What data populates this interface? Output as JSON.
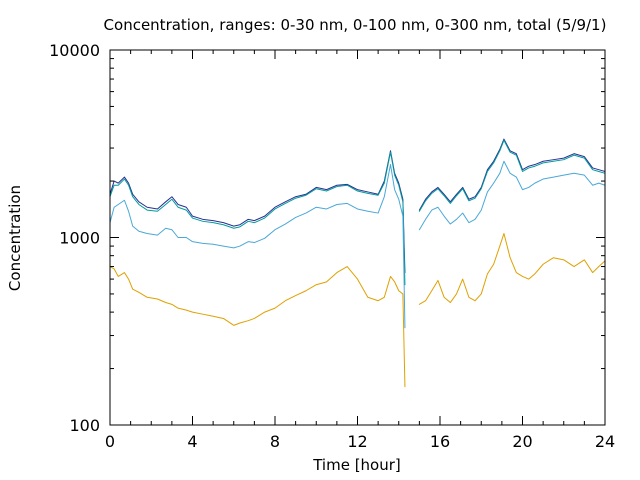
{
  "chart_data": {
    "type": "line",
    "title": "Concentration, ranges: 0-30 nm, 0-100 nm, 0-300 nm, total (5/9/1)",
    "xlabel": "Time [hour]",
    "ylabel": "Concentration",
    "xlim": [
      0,
      24
    ],
    "ylim": [
      100,
      10000
    ],
    "yscale": "log",
    "grid": false,
    "legend": "none",
    "x_ticks": [
      "0",
      "4",
      "8",
      "12",
      "16",
      "20",
      "24"
    ],
    "y_ticks": [
      "100",
      "1000",
      "10000"
    ],
    "colors": {
      "total": "#2b2f93",
      "range_0_300": "#009c9c",
      "range_0_100": "#4aa8d8",
      "range_0_30": "#e0a000",
      "frame": "#000000"
    },
    "series": [
      {
        "color": "#2b2f93",
        "segments": [
          [
            [
              0,
              1700
            ],
            [
              0.2,
              2000
            ],
            [
              0.4,
              1950
            ],
            [
              0.7,
              2100
            ],
            [
              0.9,
              1950
            ],
            [
              1.1,
              1700
            ],
            [
              1.4,
              1550
            ],
            [
              1.8,
              1450
            ],
            [
              2.3,
              1420
            ],
            [
              2.7,
              1550
            ],
            [
              3.0,
              1650
            ],
            [
              3.3,
              1500
            ],
            [
              3.7,
              1450
            ],
            [
              4.0,
              1300
            ],
            [
              4.5,
              1250
            ],
            [
              5.0,
              1230
            ],
            [
              5.5,
              1200
            ],
            [
              6.0,
              1150
            ],
            [
              6.3,
              1170
            ],
            [
              6.7,
              1250
            ],
            [
              7.0,
              1230
            ],
            [
              7.5,
              1300
            ],
            [
              8.0,
              1450
            ],
            [
              8.5,
              1550
            ],
            [
              9.0,
              1650
            ],
            [
              9.5,
              1700
            ],
            [
              10.0,
              1850
            ],
            [
              10.5,
              1800
            ],
            [
              11.0,
              1900
            ],
            [
              11.5,
              1920
            ],
            [
              12.0,
              1800
            ],
            [
              12.5,
              1750
            ],
            [
              13.0,
              1700
            ],
            [
              13.3,
              2000
            ],
            [
              13.6,
              2900
            ],
            [
              13.8,
              2200
            ],
            [
              14.0,
              1950
            ],
            [
              14.2,
              1600
            ],
            [
              14.3,
              650
            ]
          ],
          [
            [
              15.0,
              1400
            ],
            [
              15.3,
              1600
            ],
            [
              15.6,
              1750
            ],
            [
              15.9,
              1850
            ],
            [
              16.2,
              1700
            ],
            [
              16.5,
              1550
            ],
            [
              16.8,
              1700
            ],
            [
              17.1,
              1850
            ],
            [
              17.4,
              1600
            ],
            [
              17.7,
              1650
            ],
            [
              18.0,
              1850
            ],
            [
              18.3,
              2300
            ],
            [
              18.6,
              2550
            ],
            [
              18.9,
              2950
            ],
            [
              19.1,
              3350
            ],
            [
              19.4,
              2900
            ],
            [
              19.7,
              2800
            ],
            [
              20.0,
              2300
            ],
            [
              20.3,
              2400
            ],
            [
              20.6,
              2450
            ],
            [
              21.0,
              2550
            ],
            [
              21.5,
              2600
            ],
            [
              22.0,
              2650
            ],
            [
              22.5,
              2800
            ],
            [
              23.0,
              2700
            ],
            [
              23.4,
              2350
            ],
            [
              23.7,
              2300
            ],
            [
              24.0,
              2250
            ]
          ]
        ]
      },
      {
        "color": "#009c9c",
        "segments": [
          [
            [
              0,
              1650
            ],
            [
              0.2,
              1900
            ],
            [
              0.4,
              1900
            ],
            [
              0.7,
              2050
            ],
            [
              0.9,
              1900
            ],
            [
              1.1,
              1650
            ],
            [
              1.4,
              1500
            ],
            [
              1.8,
              1400
            ],
            [
              2.3,
              1380
            ],
            [
              2.7,
              1500
            ],
            [
              3.0,
              1600
            ],
            [
              3.3,
              1450
            ],
            [
              3.7,
              1400
            ],
            [
              4.0,
              1270
            ],
            [
              4.5,
              1220
            ],
            [
              5.0,
              1200
            ],
            [
              5.5,
              1170
            ],
            [
              6.0,
              1120
            ],
            [
              6.3,
              1140
            ],
            [
              6.7,
              1220
            ],
            [
              7.0,
              1200
            ],
            [
              7.5,
              1270
            ],
            [
              8.0,
              1420
            ],
            [
              8.5,
              1520
            ],
            [
              9.0,
              1620
            ],
            [
              9.5,
              1680
            ],
            [
              10.0,
              1820
            ],
            [
              10.5,
              1770
            ],
            [
              11.0,
              1870
            ],
            [
              11.5,
              1900
            ],
            [
              12.0,
              1770
            ],
            [
              12.5,
              1720
            ],
            [
              13.0,
              1680
            ],
            [
              13.3,
              1950
            ],
            [
              13.6,
              2850
            ],
            [
              13.8,
              2150
            ],
            [
              14.0,
              1900
            ],
            [
              14.2,
              1550
            ],
            [
              14.3,
              560
            ]
          ],
          [
            [
              15.0,
              1380
            ],
            [
              15.3,
              1570
            ],
            [
              15.6,
              1720
            ],
            [
              15.9,
              1820
            ],
            [
              16.2,
              1670
            ],
            [
              16.5,
              1520
            ],
            [
              16.8,
              1670
            ],
            [
              17.1,
              1820
            ],
            [
              17.4,
              1570
            ],
            [
              17.7,
              1620
            ],
            [
              18.0,
              1820
            ],
            [
              18.3,
              2250
            ],
            [
              18.6,
              2500
            ],
            [
              18.9,
              2900
            ],
            [
              19.1,
              3300
            ],
            [
              19.4,
              2850
            ],
            [
              19.7,
              2750
            ],
            [
              20.0,
              2250
            ],
            [
              20.3,
              2350
            ],
            [
              20.6,
              2400
            ],
            [
              21.0,
              2500
            ],
            [
              21.5,
              2550
            ],
            [
              22.0,
              2600
            ],
            [
              22.5,
              2750
            ],
            [
              23.0,
              2650
            ],
            [
              23.4,
              2300
            ],
            [
              23.7,
              2250
            ],
            [
              24.0,
              2200
            ]
          ]
        ]
      },
      {
        "color": "#4aa8d8",
        "segments": [
          [
            [
              0,
              1200
            ],
            [
              0.2,
              1450
            ],
            [
              0.4,
              1500
            ],
            [
              0.7,
              1580
            ],
            [
              0.9,
              1380
            ],
            [
              1.1,
              1150
            ],
            [
              1.4,
              1080
            ],
            [
              1.8,
              1050
            ],
            [
              2.3,
              1030
            ],
            [
              2.7,
              1120
            ],
            [
              3.0,
              1100
            ],
            [
              3.3,
              1000
            ],
            [
              3.7,
              1000
            ],
            [
              4.0,
              950
            ],
            [
              4.5,
              930
            ],
            [
              5.0,
              920
            ],
            [
              5.5,
              900
            ],
            [
              6.0,
              880
            ],
            [
              6.3,
              900
            ],
            [
              6.7,
              950
            ],
            [
              7.0,
              940
            ],
            [
              7.5,
              990
            ],
            [
              8.0,
              1100
            ],
            [
              8.5,
              1180
            ],
            [
              9.0,
              1280
            ],
            [
              9.5,
              1350
            ],
            [
              10.0,
              1450
            ],
            [
              10.5,
              1420
            ],
            [
              11.0,
              1500
            ],
            [
              11.5,
              1520
            ],
            [
              12.0,
              1420
            ],
            [
              12.5,
              1380
            ],
            [
              13.0,
              1350
            ],
            [
              13.3,
              1650
            ],
            [
              13.6,
              2450
            ],
            [
              13.8,
              1800
            ],
            [
              14.0,
              1600
            ],
            [
              14.2,
              1300
            ],
            [
              14.3,
              330
            ]
          ],
          [
            [
              15.0,
              1100
            ],
            [
              15.3,
              1250
            ],
            [
              15.6,
              1400
            ],
            [
              15.9,
              1450
            ],
            [
              16.2,
              1300
            ],
            [
              16.5,
              1180
            ],
            [
              16.8,
              1250
            ],
            [
              17.1,
              1350
            ],
            [
              17.4,
              1200
            ],
            [
              17.7,
              1250
            ],
            [
              18.0,
              1400
            ],
            [
              18.3,
              1750
            ],
            [
              18.6,
              1950
            ],
            [
              18.9,
              2200
            ],
            [
              19.1,
              2550
            ],
            [
              19.4,
              2200
            ],
            [
              19.7,
              2100
            ],
            [
              20.0,
              1800
            ],
            [
              20.3,
              1850
            ],
            [
              20.6,
              1950
            ],
            [
              21.0,
              2050
            ],
            [
              21.5,
              2100
            ],
            [
              22.0,
              2150
            ],
            [
              22.5,
              2200
            ],
            [
              23.0,
              2150
            ],
            [
              23.4,
              1900
            ],
            [
              23.7,
              1950
            ],
            [
              24.0,
              1900
            ]
          ]
        ]
      },
      {
        "color": "#e0a000",
        "segments": [
          [
            [
              0,
              700
            ],
            [
              0.2,
              680
            ],
            [
              0.4,
              620
            ],
            [
              0.7,
              650
            ],
            [
              0.9,
              600
            ],
            [
              1.1,
              530
            ],
            [
              1.4,
              510
            ],
            [
              1.8,
              480
            ],
            [
              2.3,
              470
            ],
            [
              2.7,
              450
            ],
            [
              3.0,
              440
            ],
            [
              3.3,
              420
            ],
            [
              3.7,
              410
            ],
            [
              4.0,
              400
            ],
            [
              4.5,
              390
            ],
            [
              5.0,
              380
            ],
            [
              5.5,
              370
            ],
            [
              6.0,
              340
            ],
            [
              6.3,
              350
            ],
            [
              6.7,
              360
            ],
            [
              7.0,
              370
            ],
            [
              7.5,
              400
            ],
            [
              8.0,
              420
            ],
            [
              8.5,
              460
            ],
            [
              9.0,
              490
            ],
            [
              9.5,
              520
            ],
            [
              10.0,
              560
            ],
            [
              10.5,
              580
            ],
            [
              11.0,
              650
            ],
            [
              11.5,
              700
            ],
            [
              12.0,
              600
            ],
            [
              12.5,
              480
            ],
            [
              13.0,
              460
            ],
            [
              13.3,
              480
            ],
            [
              13.6,
              620
            ],
            [
              13.8,
              580
            ],
            [
              14.0,
              520
            ],
            [
              14.2,
              500
            ],
            [
              14.3,
              160
            ]
          ],
          [
            [
              15.0,
              440
            ],
            [
              15.3,
              460
            ],
            [
              15.6,
              520
            ],
            [
              15.9,
              590
            ],
            [
              16.2,
              480
            ],
            [
              16.5,
              450
            ],
            [
              16.8,
              500
            ],
            [
              17.1,
              600
            ],
            [
              17.4,
              480
            ],
            [
              17.7,
              460
            ],
            [
              18.0,
              500
            ],
            [
              18.3,
              640
            ],
            [
              18.6,
              720
            ],
            [
              18.9,
              900
            ],
            [
              19.1,
              1050
            ],
            [
              19.4,
              780
            ],
            [
              19.7,
              650
            ],
            [
              20.0,
              620
            ],
            [
              20.3,
              600
            ],
            [
              20.6,
              640
            ],
            [
              21.0,
              720
            ],
            [
              21.5,
              780
            ],
            [
              22.0,
              760
            ],
            [
              22.5,
              700
            ],
            [
              23.0,
              760
            ],
            [
              23.4,
              650
            ],
            [
              23.7,
              700
            ],
            [
              24.0,
              750
            ]
          ]
        ]
      }
    ]
  }
}
